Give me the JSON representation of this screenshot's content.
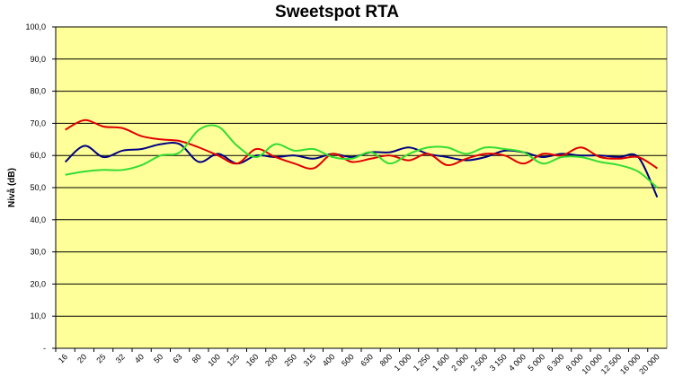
{
  "chart_data": {
    "type": "line",
    "title": "Sweetspot RTA",
    "xlabel": "",
    "ylabel": "Nivå (dB)",
    "ylim": [
      0,
      100
    ],
    "y_ticks": [
      "-",
      "10,0",
      "20,0",
      "30,0",
      "40,0",
      "50,0",
      "60,0",
      "70,0",
      "80,0",
      "90,0",
      "100,0"
    ],
    "categories": [
      "16",
      "20",
      "25",
      "32",
      "40",
      "50",
      "63",
      "80",
      "100",
      "125",
      "160",
      "200",
      "250",
      "315",
      "400",
      "500",
      "630",
      "800",
      "1 000",
      "1 250",
      "1 600",
      "2 000",
      "2 500",
      "3 150",
      "4 000",
      "5 000",
      "6 300",
      "8 000",
      "10 000",
      "12 500",
      "16 000",
      "20 000"
    ],
    "grid": "horizontal",
    "plot_background": "#FFFF99",
    "series": [
      {
        "color": "#000080",
        "values": [
          58.0,
          63.0,
          59.5,
          61.5,
          62.0,
          63.5,
          63.5,
          58.0,
          60.5,
          57.5,
          60.0,
          59.5,
          60.0,
          59.0,
          60.5,
          59.5,
          61.0,
          61.0,
          62.5,
          60.5,
          59.5,
          58.5,
          59.5,
          61.5,
          61.0,
          59.5,
          60.5,
          60.0,
          60.0,
          59.5,
          59.5,
          47.0
        ]
      },
      {
        "color": "#E00000",
        "values": [
          68.0,
          71.0,
          69.0,
          68.5,
          66.0,
          65.0,
          64.5,
          62.5,
          60.0,
          57.5,
          62.0,
          59.5,
          57.5,
          56.0,
          60.5,
          58.0,
          59.0,
          60.0,
          58.5,
          60.5,
          57.0,
          59.0,
          60.5,
          60.0,
          57.5,
          60.5,
          60.0,
          62.5,
          59.5,
          59.0,
          59.5,
          56.0
        ]
      },
      {
        "color": "#33DD33",
        "values": [
          54.0,
          55.0,
          55.5,
          55.5,
          57.0,
          60.0,
          61.0,
          68.0,
          69.0,
          63.0,
          59.5,
          63.5,
          61.5,
          62.0,
          59.5,
          59.0,
          61.0,
          57.5,
          60.5,
          62.5,
          62.5,
          60.5,
          62.5,
          62.0,
          61.0,
          57.5,
          59.5,
          59.5,
          58.0,
          57.0,
          55.0,
          50.0
        ]
      }
    ]
  }
}
